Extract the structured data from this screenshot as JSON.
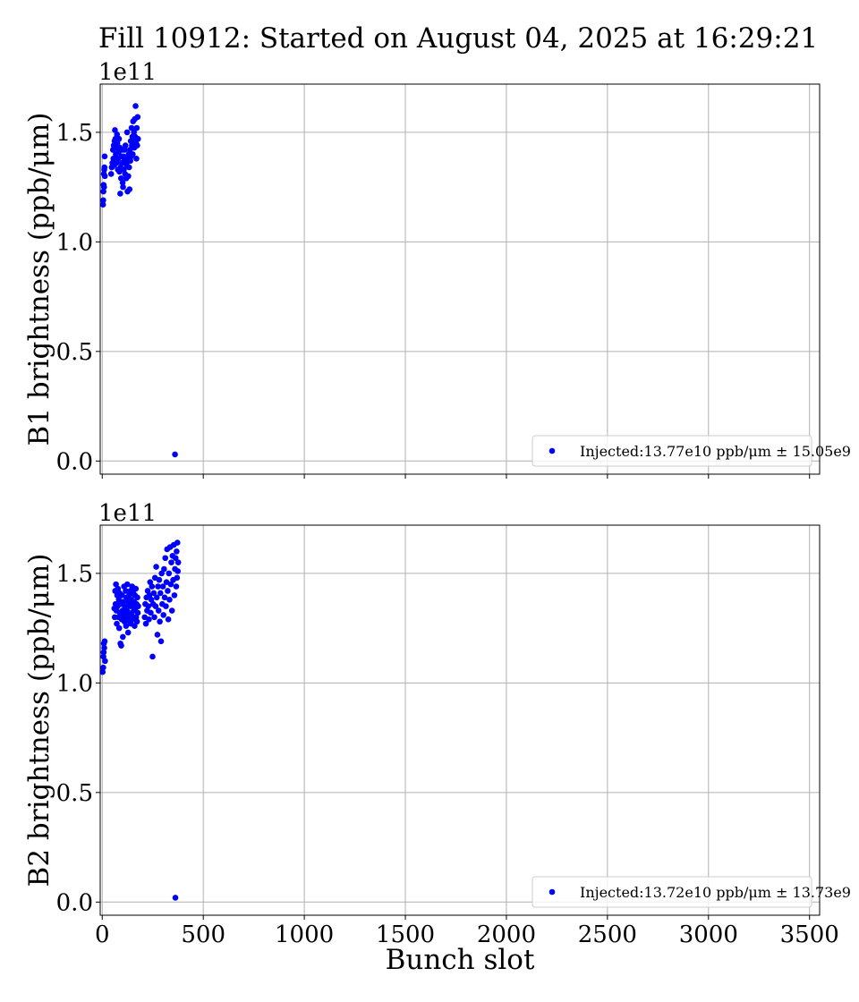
{
  "figure": {
    "title": "Fill 10912: Started on August 04, 2025 at 16:29:21",
    "xlabel": "Bunch slot"
  },
  "chart_data": [
    {
      "type": "scatter",
      "ylabel": "B1 brightness (ppb/μm)",
      "y_multiplier": "1e11",
      "xlim": [
        -10,
        3550
      ],
      "ylim": [
        -0.06,
        1.72
      ],
      "x_ticks": [
        0,
        500,
        1000,
        1500,
        2000,
        2500,
        3000,
        3500
      ],
      "x_tick_labels": [
        "0",
        "500",
        "1000",
        "1500",
        "2000",
        "2500",
        "3000",
        "3500"
      ],
      "x_tick_labels_visible": false,
      "y_ticks": [
        0.0,
        0.5,
        1.0,
        1.5
      ],
      "y_tick_labels": [
        "0.0",
        "0.5",
        "1.0",
        "1.5"
      ],
      "grid": true,
      "legend_position": "lower-right",
      "color": "#0000ff",
      "series": [
        {
          "name": "Injected:13.77e10 ppb/μm ± 15.05e9",
          "points": [
            [
              4,
              1.17
            ],
            [
              5,
              1.19
            ],
            [
              6,
              1.23
            ],
            [
              7,
              1.26
            ],
            [
              8,
              1.31
            ],
            [
              9,
              1.25
            ],
            [
              10,
              1.33
            ],
            [
              11,
              1.34
            ],
            [
              12,
              1.39
            ],
            [
              13,
              1.3
            ],
            [
              44,
              1.31
            ],
            [
              47,
              1.34
            ],
            [
              50,
              1.36
            ],
            [
              53,
              1.42
            ],
            [
              55,
              1.38
            ],
            [
              57,
              1.44
            ],
            [
              59,
              1.35
            ],
            [
              61,
              1.46
            ],
            [
              63,
              1.51
            ],
            [
              65,
              1.47
            ],
            [
              67,
              1.4
            ],
            [
              69,
              1.43
            ],
            [
              71,
              1.36
            ],
            [
              73,
              1.49
            ],
            [
              75,
              1.45
            ],
            [
              77,
              1.33
            ],
            [
              79,
              1.38
            ],
            [
              81,
              1.41
            ],
            [
              83,
              1.47
            ],
            [
              85,
              1.32
            ],
            [
              87,
              1.43
            ],
            [
              89,
              1.22
            ],
            [
              91,
              1.34
            ],
            [
              93,
              1.29
            ],
            [
              95,
              1.39
            ],
            [
              97,
              1.36
            ],
            [
              99,
              1.42
            ],
            [
              101,
              1.27
            ],
            [
              103,
              1.25
            ],
            [
              105,
              1.39
            ],
            [
              107,
              1.33
            ],
            [
              109,
              1.37
            ],
            [
              111,
              1.42
            ],
            [
              113,
              1.31
            ],
            [
              115,
              1.44
            ],
            [
              117,
              1.36
            ],
            [
              119,
              1.29
            ],
            [
              121,
              1.35
            ],
            [
              123,
              1.5
            ],
            [
              125,
              1.23
            ],
            [
              127,
              1.38
            ],
            [
              129,
              1.3
            ],
            [
              131,
              1.4
            ],
            [
              133,
              1.34
            ],
            [
              135,
              1.24
            ],
            [
              137,
              1.42
            ],
            [
              139,
              1.37
            ],
            [
              141,
              1.46
            ],
            [
              143,
              1.39
            ],
            [
              145,
              1.52
            ],
            [
              147,
              1.44
            ],
            [
              149,
              1.48
            ],
            [
              151,
              1.4
            ],
            [
              153,
              1.55
            ],
            [
              155,
              1.46
            ],
            [
              157,
              1.5
            ],
            [
              159,
              1.43
            ],
            [
              161,
              1.56
            ],
            [
              163,
              1.48
            ],
            [
              165,
              1.62
            ],
            [
              167,
              1.45
            ],
            [
              169,
              1.38
            ],
            [
              171,
              1.52
            ],
            [
              173,
              1.44
            ],
            [
              175,
              1.57
            ],
            [
              177,
              1.47
            ],
            [
              360,
              0.03
            ]
          ]
        }
      ]
    },
    {
      "type": "scatter",
      "ylabel": "B2 brightness (ppb/μm)",
      "y_multiplier": "1e11",
      "xlim": [
        -10,
        3550
      ],
      "ylim": [
        -0.06,
        1.72
      ],
      "x_ticks": [
        0,
        500,
        1000,
        1500,
        2000,
        2500,
        3000,
        3500
      ],
      "x_tick_labels": [
        "0",
        "500",
        "1000",
        "1500",
        "2000",
        "2500",
        "3000",
        "3500"
      ],
      "x_tick_labels_visible": true,
      "y_ticks": [
        0.0,
        0.5,
        1.0,
        1.5
      ],
      "y_tick_labels": [
        "0.0",
        "0.5",
        "1.0",
        "1.5"
      ],
      "grid": true,
      "legend_position": "lower-right",
      "color": "#0000ff",
      "series": [
        {
          "name": "Injected:13.72e10 ppb/μm ± 13.73e9",
          "points": [
            [
              2,
              1.05
            ],
            [
              5,
              1.07
            ],
            [
              6,
              1.12
            ],
            [
              7,
              1.14
            ],
            [
              8,
              1.18
            ],
            [
              10,
              1.16
            ],
            [
              12,
              1.19
            ],
            [
              14,
              1.1
            ],
            [
              60,
              1.34
            ],
            [
              62,
              1.3
            ],
            [
              64,
              1.42
            ],
            [
              66,
              1.36
            ],
            [
              68,
              1.45
            ],
            [
              70,
              1.33
            ],
            [
              72,
              1.27
            ],
            [
              74,
              1.4
            ],
            [
              76,
              1.35
            ],
            [
              78,
              1.43
            ],
            [
              80,
              1.3
            ],
            [
              82,
              1.38
            ],
            [
              84,
              1.25
            ],
            [
              86,
              1.41
            ],
            [
              88,
              1.32
            ],
            [
              90,
              1.18
            ],
            [
              92,
              1.36
            ],
            [
              94,
              1.17
            ],
            [
              96,
              1.29
            ],
            [
              98,
              1.4
            ],
            [
              100,
              1.33
            ],
            [
              102,
              1.21
            ],
            [
              104,
              1.37
            ],
            [
              106,
              1.31
            ],
            [
              108,
              1.44
            ],
            [
              110,
              1.28
            ],
            [
              112,
              1.35
            ],
            [
              114,
              1.3
            ],
            [
              116,
              1.42
            ],
            [
              118,
              1.26
            ],
            [
              120,
              1.39
            ],
            [
              122,
              1.33
            ],
            [
              124,
              1.45
            ],
            [
              126,
              1.3
            ],
            [
              128,
              1.23
            ],
            [
              130,
              1.37
            ],
            [
              132,
              1.32
            ],
            [
              134,
              1.4
            ],
            [
              136,
              1.28
            ],
            [
              138,
              1.35
            ],
            [
              140,
              1.42
            ],
            [
              142,
              1.27
            ],
            [
              144,
              1.38
            ],
            [
              146,
              1.31
            ],
            [
              148,
              1.44
            ],
            [
              150,
              1.36
            ],
            [
              152,
              1.29
            ],
            [
              154,
              1.41
            ],
            [
              156,
              1.33
            ],
            [
              158,
              1.37
            ],
            [
              160,
              1.26
            ],
            [
              162,
              1.4
            ],
            [
              164,
              1.34
            ],
            [
              166,
              1.43
            ],
            [
              168,
              1.3
            ],
            [
              170,
              1.36
            ],
            [
              172,
              1.28
            ],
            [
              174,
              1.39
            ],
            [
              176,
              1.32
            ],
            [
              178,
              1.35
            ],
            [
              210,
              1.3
            ],
            [
              213,
              1.36
            ],
            [
              216,
              1.27
            ],
            [
              219,
              1.39
            ],
            [
              222,
              1.33
            ],
            [
              225,
              1.42
            ],
            [
              228,
              1.35
            ],
            [
              231,
              1.29
            ],
            [
              234,
              1.4
            ],
            [
              237,
              1.46
            ],
            [
              240,
              1.32
            ],
            [
              243,
              1.38
            ],
            [
              246,
              1.44
            ],
            [
              249,
              1.12
            ],
            [
              252,
              1.36
            ],
            [
              255,
              1.41
            ],
            [
              258,
              1.3
            ],
            [
              261,
              1.48
            ],
            [
              264,
              1.35
            ],
            [
              267,
              1.53
            ],
            [
              270,
              1.39
            ],
            [
              273,
              1.22
            ],
            [
              276,
              1.44
            ],
            [
              279,
              1.33
            ],
            [
              282,
              1.47
            ],
            [
              285,
              1.28
            ],
            [
              288,
              1.41
            ],
            [
              291,
              1.19
            ],
            [
              294,
              1.5
            ],
            [
              297,
              1.36
            ],
            [
              300,
              1.44
            ],
            [
              303,
              1.31
            ],
            [
              306,
              1.52
            ],
            [
              309,
              1.39
            ],
            [
              312,
              1.57
            ],
            [
              315,
              1.35
            ],
            [
              318,
              1.46
            ],
            [
              321,
              1.61
            ],
            [
              324,
              1.42
            ],
            [
              327,
              1.29
            ],
            [
              330,
              1.5
            ],
            [
              333,
              1.38
            ],
            [
              336,
              1.62
            ],
            [
              339,
              1.45
            ],
            [
              342,
              1.55
            ],
            [
              345,
              1.33
            ],
            [
              348,
              1.58
            ],
            [
              351,
              1.47
            ],
            [
              354,
              1.63
            ],
            [
              357,
              1.4
            ],
            [
              360,
              1.52
            ],
            [
              363,
              1.57
            ],
            [
              366,
              1.44
            ],
            [
              368,
              1.6
            ],
            [
              370,
              1.48
            ],
            [
              372,
              1.64
            ],
            [
              374,
              1.51
            ],
            [
              376,
              1.55
            ],
            [
              362,
              0.02
            ]
          ]
        }
      ]
    }
  ]
}
